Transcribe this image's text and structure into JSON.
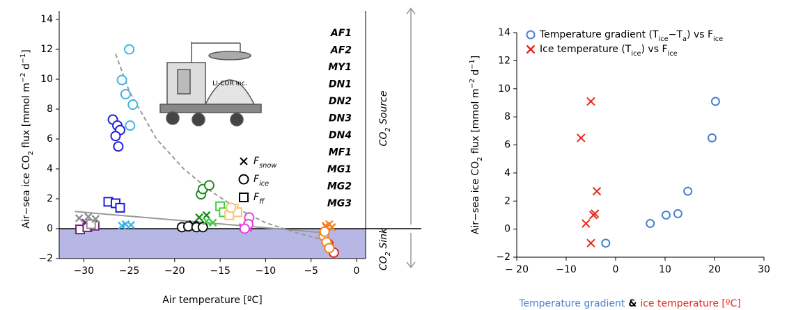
{
  "chart_data": [
    {
      "type": "scatter",
      "xlabel": "Air temperature [ºC]",
      "ylabel": [
        "Air−sea ice CO",
        {
          "sub": "2"
        },
        " flux [mmol m",
        {
          "sup": "−2"
        },
        " d",
        {
          "sup": "−1"
        },
        "]"
      ],
      "xlim": [
        -32.7,
        1
      ],
      "ylim": [
        -2,
        14
      ],
      "xticks": [
        {
          "value": -30,
          "label": "−30"
        },
        {
          "value": -25,
          "label": "−25"
        },
        {
          "value": -20,
          "label": "−20"
        },
        {
          "value": -15,
          "label": "−15"
        },
        {
          "value": -10,
          "label": "−10"
        },
        {
          "value": -5,
          "label": "−5"
        },
        0
      ],
      "yticks": [
        {
          "value": -2,
          "label": "−2"
        },
        0,
        2,
        4,
        6,
        8,
        10,
        12,
        14
      ],
      "series": [
        {
          "name": "AF1",
          "color": "#7a1f7a",
          "ff": {
            "x": [
              -30.4,
              -29.6,
              -28.8
            ],
            "values": [
              -0.05,
              0.1,
              0.2
            ]
          },
          "snow": {
            "x": [
              -29.8
            ],
            "values": [
              0.4
            ]
          }
        },
        {
          "name": "AF2",
          "color": "#8c8c8c",
          "snow": {
            "x": [
              -30.5,
              -29.5,
              -28.7
            ],
            "values": [
              0.7,
              0.8,
              0.65
            ]
          },
          "ff": {
            "x": [
              -29.2
            ],
            "values": [
              0.3
            ]
          }
        },
        {
          "name": "MY1",
          "color": "#111111",
          "ice": {
            "x": [
              -19.2,
              -18.5,
              -17.6,
              -16.9
            ],
            "values": [
              0.1,
              0.15,
              0.1,
              0.1
            ]
          },
          "snow": {
            "x": [
              -18,
              -17.2
            ],
            "values": [
              0.3,
              0.25
            ]
          }
        },
        {
          "name": "DN1",
          "color": "#e8251c",
          "ice": {
            "x": [
              -3.1,
              -2.5
            ],
            "values": [
              -1.0,
              -1.6
            ]
          },
          "snow": {
            "x": [
              -3.3
            ],
            "values": [
              0.1
            ]
          }
        },
        {
          "name": "DN2",
          "color": "#f5821f",
          "ice": {
            "x": [
              -3.6,
              -3.3,
              -3.0,
              -3.5
            ],
            "values": [
              -0.5,
              -0.9,
              -1.3,
              -0.2
            ]
          },
          "snow": {
            "x": [
              -3.4,
              -3.0,
              -2.7
            ],
            "values": [
              0.2,
              0.3,
              0.1
            ]
          }
        },
        {
          "name": "DN3",
          "color": "#1e8a1e",
          "ice": {
            "x": [
              -17.1,
              -16.9,
              -16.2
            ],
            "values": [
              2.3,
              2.65,
              2.9
            ]
          },
          "snow": {
            "x": [
              -17.3,
              -16.5
            ],
            "values": [
              0.75,
              0.9
            ]
          }
        },
        {
          "name": "DN4",
          "color": "#3fb4e8",
          "ice": {
            "x": [
              -25,
              -25.8,
              -25.4,
              -24.6,
              -24.9
            ],
            "values": [
              12.0,
              9.95,
              9.0,
              8.3,
              6.9
            ]
          },
          "snow": {
            "x": [
              -25.8,
              -25.4,
              -24.8
            ],
            "values": [
              0.2,
              0.3,
              0.25
            ]
          }
        },
        {
          "name": "MF1",
          "color": "#1d1ddb",
          "ice": {
            "x": [
              -26.8,
              -26.3,
              -26,
              -26.5,
              -26.2
            ],
            "values": [
              7.3,
              6.9,
              6.6,
              6.2,
              5.5
            ]
          },
          "ff": {
            "x": [
              -27.3,
              -26.5,
              -26
            ],
            "values": [
              1.8,
              1.7,
              1.4
            ]
          }
        },
        {
          "name": "MG1",
          "color": "#3cd23c",
          "snow": {
            "x": [
              -16.5,
              -15.8
            ],
            "values": [
              0.5,
              0.4
            ]
          },
          "ff": {
            "x": [
              -15,
              -14.6
            ],
            "values": [
              1.5,
              1.1
            ]
          }
        },
        {
          "name": "MG2",
          "color": "#f7c471",
          "ff": {
            "x": [
              -13.5,
              -13.1,
              -14
            ],
            "values": [
              1.35,
              1.1,
              0.9
            ]
          },
          "ice": {
            "x": [
              -13.8
            ],
            "values": [
              1.4
            ]
          }
        },
        {
          "name": "MG3",
          "color": "#e83ce8",
          "ice": {
            "x": [
              -11.8,
              -11.9,
              -12.3
            ],
            "values": [
              0.75,
              0.3,
              0
            ]
          },
          "snow": {
            "x": [
              -11.9,
              -12.5
            ],
            "values": [
              0.05,
              0.1
            ]
          }
        }
      ],
      "marker_legend": [
        {
          "symbol": "snow",
          "label": [
            "F",
            {
              "sub": "snow"
            }
          ]
        },
        {
          "symbol": "ice",
          "label": [
            "F",
            {
              "sub": "ice"
            }
          ]
        },
        {
          "symbol": "ff",
          "label": [
            "F",
            {
              "sub": "ff"
            }
          ]
        }
      ],
      "fit_curve": {
        "color": "#999999",
        "x": [
          -26.5,
          -25,
          -22,
          -19,
          -16,
          -13,
          -10,
          -7,
          -4,
          -2.5
        ],
        "values": [
          11.7,
          9.2,
          6,
          4,
          2.5,
          1.3,
          0.4,
          -0.2,
          -0.7,
          -0.9
        ]
      },
      "fit_line": {
        "color": "#999999",
        "x": [
          -31,
          -3
        ],
        "values": [
          1.15,
          -0.3
        ]
      },
      "sink_color": "#aaaae2",
      "source_label": [
        "CO",
        {
          "sub": "2"
        },
        " Source"
      ],
      "sink_label": [
        "CO",
        {
          "sub": "2"
        },
        " Sink"
      ],
      "instrument_label": "LI-COR Inc."
    },
    {
      "type": "scatter",
      "xlabel": [
        "Temperature gradient",
        " & ",
        "ice temperature",
        " [ºC]"
      ],
      "xlabel_colors": [
        "#4a7fd4",
        "#000000",
        "#e8251c",
        "#e8251c"
      ],
      "ylabel": [
        "Air−sea ice CO",
        {
          "sub": "2"
        },
        " flux [mmol m",
        {
          "sup": "−2"
        },
        " d",
        {
          "sup": "−1"
        },
        "]"
      ],
      "xlim": [
        -20,
        30
      ],
      "ylim": [
        -2,
        14
      ],
      "xticks": [
        {
          "value": -20,
          "label": "− 20"
        },
        {
          "value": -10,
          "label": "−10"
        },
        0,
        10,
        20,
        30
      ],
      "yticks": [
        {
          "value": -2,
          "label": "−2"
        },
        0,
        2,
        4,
        6,
        8,
        10,
        12,
        14
      ],
      "legend": "upper left",
      "series": [
        {
          "name": [
            "Temperature gradient (T",
            {
              "sub": "ice"
            },
            "−T",
            {
              "sub": "a"
            },
            ") vs F",
            {
              "sub": "ice"
            }
          ],
          "color": "#4a7fd4",
          "marker": "circle",
          "x": [
            -2,
            7,
            10.2,
            12.6,
            14.6,
            19.5,
            20.2
          ],
          "values": [
            -1,
            0.4,
            1,
            1.1,
            2.7,
            6.5,
            9.1
          ]
        },
        {
          "name": [
            "Ice temperature (T",
            {
              "sub": "ice"
            },
            ") vs F",
            {
              "sub": "ice"
            }
          ],
          "color": "#e8251c",
          "marker": "cross",
          "x": [
            -5,
            -6,
            -4.5,
            -4.2,
            -3.8,
            -7,
            -5
          ],
          "values": [
            -1,
            0.4,
            1,
            1.1,
            2.7,
            6.5,
            9.1
          ]
        }
      ]
    }
  ]
}
